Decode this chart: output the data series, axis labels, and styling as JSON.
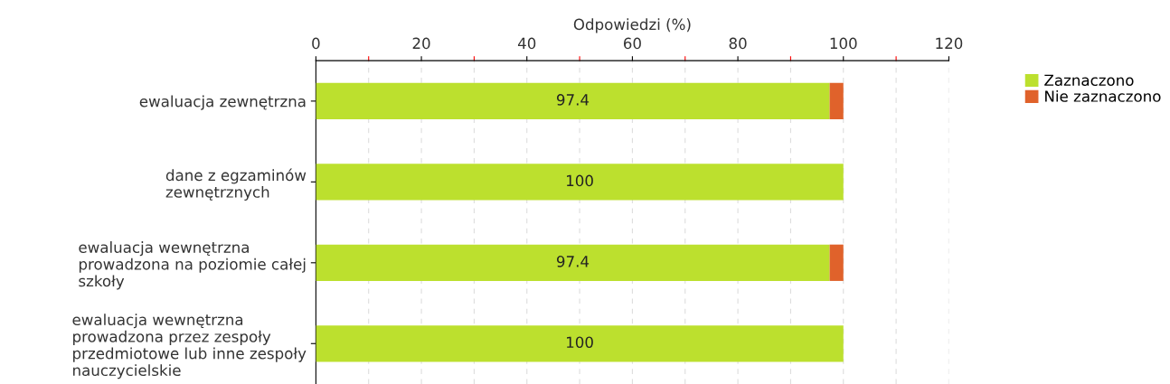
{
  "chart_data": {
    "type": "bar",
    "orientation": "horizontal",
    "stacked": true,
    "xlabel": "Odpowiedzi (%)",
    "categories": [
      "ewaluacja zewnętrzna",
      "dane z egzaminów\nzewnętrznych",
      "ewaluacja wewnętrzna\nprowadzona na poziomie całej\nszkoły",
      "ewaluacja wewnętrzna\nprowadzona przez zespoły\nprzedmiotowe lub inne zespoły\nnauczycielskie"
    ],
    "series": [
      {
        "name": "Zaznaczono",
        "color": "#bce02e",
        "values": [
          97.4,
          100,
          97.4,
          100
        ],
        "value_labels": [
          "97.4",
          "100",
          "97.4",
          "100"
        ]
      },
      {
        "name": "Nie zaznaczono",
        "color": "#e0622b",
        "values": [
          2.6,
          0,
          2.6,
          0
        ]
      }
    ],
    "xlim": [
      0,
      120
    ],
    "xticks": [
      0,
      {
        "value": 10,
        "label": null
      },
      20,
      {
        "value": 30,
        "label": null
      },
      40,
      {
        "value": 50,
        "label": null
      },
      60,
      {
        "value": 70,
        "label": null
      },
      80,
      {
        "value": 90,
        "label": null
      },
      100,
      {
        "value": 110,
        "label": null
      },
      120
    ],
    "grid": "x",
    "legend": "top right"
  }
}
